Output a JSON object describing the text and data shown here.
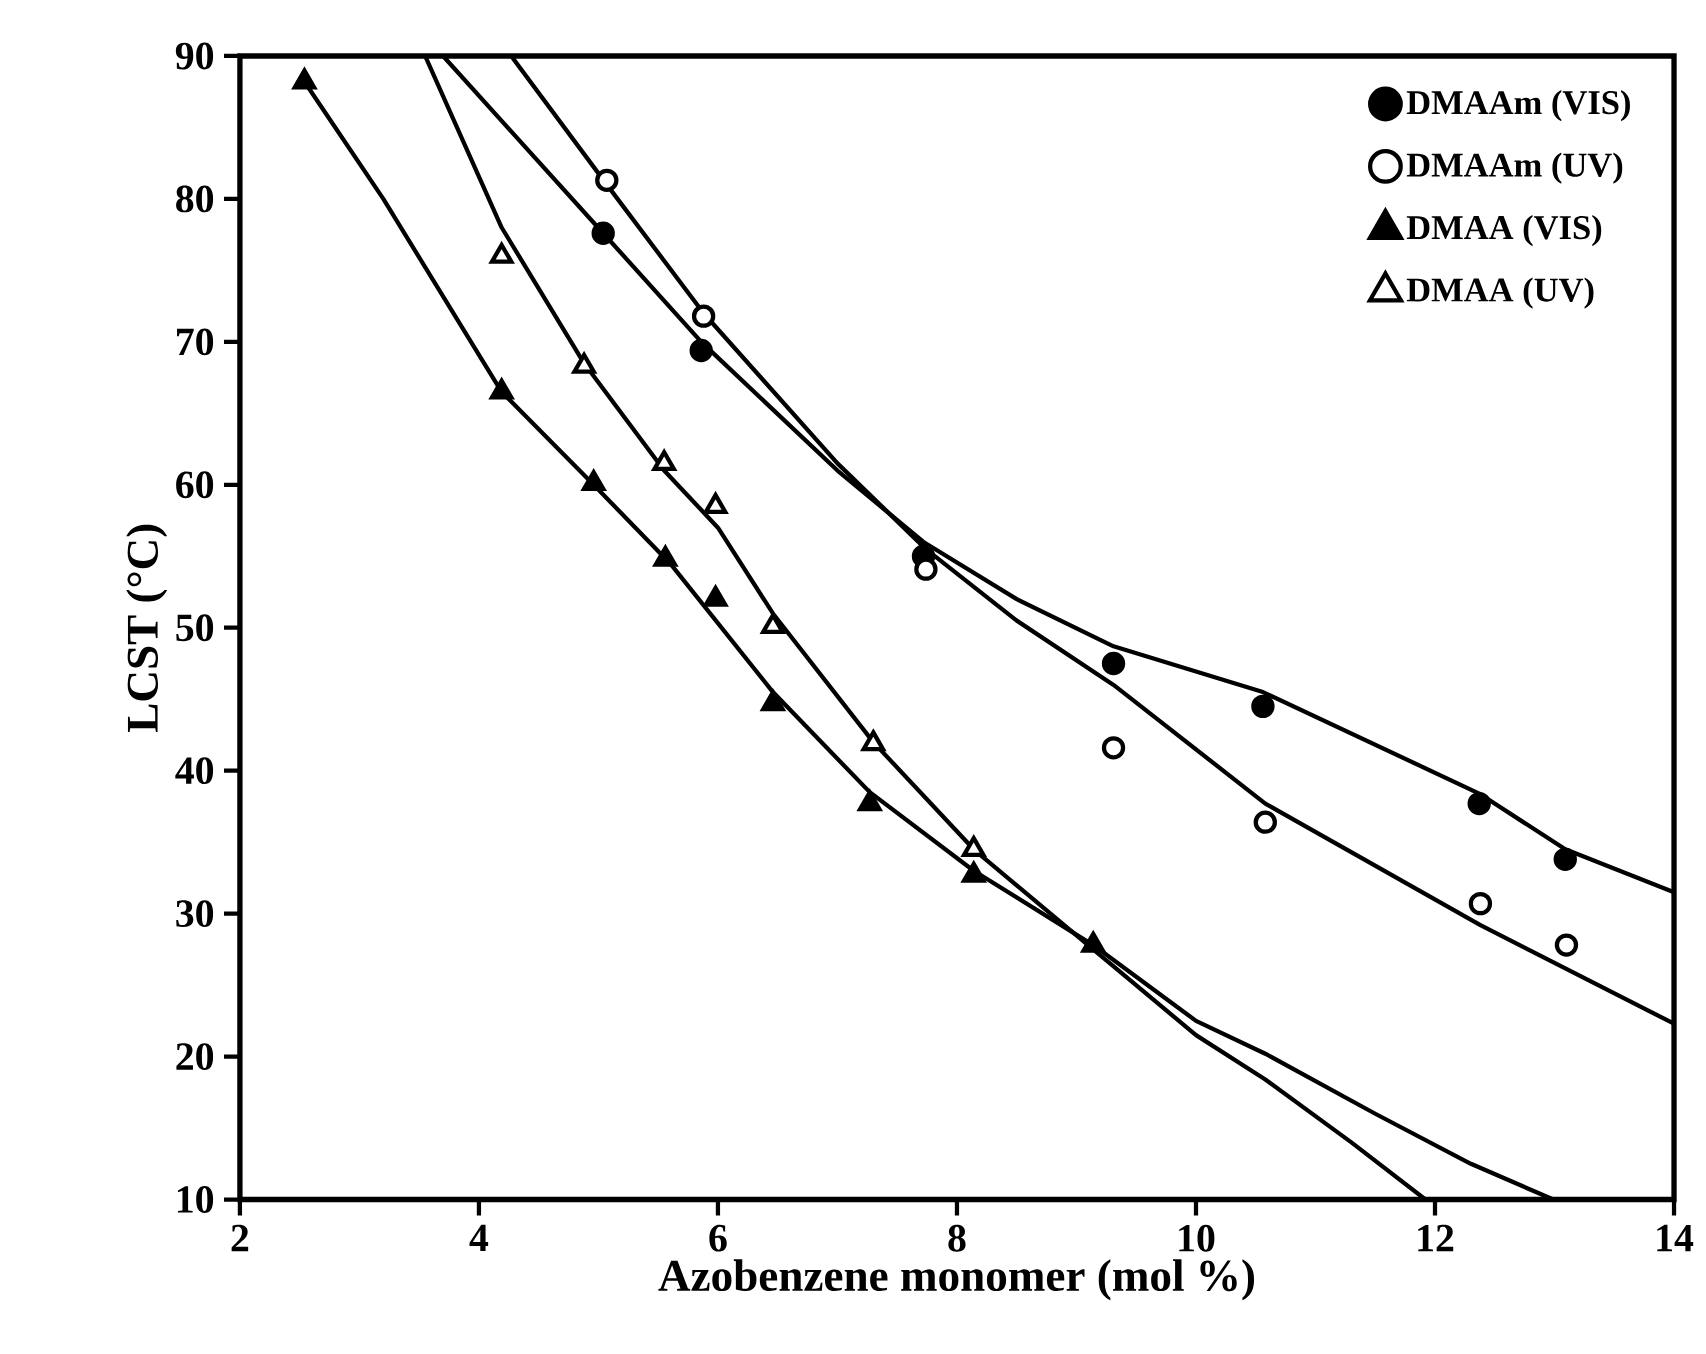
{
  "chart_data": {
    "type": "scatter",
    "xlabel": "Azobenzene monomer (mol %)",
    "ylabel": "LCST (°C)",
    "xlim": [
      2,
      14
    ],
    "ylim": [
      10,
      90
    ],
    "xticks": [
      2,
      4,
      6,
      8,
      10,
      12,
      14
    ],
    "yticks": [
      10,
      20,
      30,
      40,
      50,
      60,
      70,
      80,
      90
    ],
    "legend": "top right",
    "series": [
      {
        "name": "DMAAm (VIS)",
        "color": "#000000",
        "marker": "circle",
        "x": [
          5.04,
          5.86,
          7.72,
          9.31,
          10.56,
          12.37,
          13.09
        ],
        "values": [
          77.6,
          69.4,
          55.0,
          47.5,
          44.5,
          37.7,
          33.8
        ]
      },
      {
        "name": "DMAAm (UV)",
        "color": "#ffffff",
        "marker": "circle",
        "x": [
          5.07,
          5.88,
          7.74,
          9.31,
          10.58,
          12.38,
          13.1
        ],
        "values": [
          81.3,
          71.8,
          54.1,
          41.6,
          36.4,
          30.7,
          27.8
        ]
      },
      {
        "name": "DMAA (VIS)",
        "color": "#000000",
        "marker": "triangle",
        "x": [
          2.54,
          4.19,
          4.96,
          5.56,
          5.98,
          6.46,
          7.27,
          8.14,
          9.14
        ],
        "values": [
          88.2,
          66.5,
          60.1,
          54.8,
          52.0,
          44.7,
          37.7,
          32.7,
          27.8
        ]
      },
      {
        "name": "DMAA (UV)",
        "color": "#ffffff",
        "marker": "triangle",
        "x": [
          4.19,
          4.88,
          5.55,
          5.98,
          6.46,
          7.3,
          8.14
        ],
        "values": [
          76.0,
          68.3,
          61.5,
          58.5,
          50.1,
          41.9,
          34.5
        ]
      },
      {
        "type": "line",
        "color": "#000000",
        "marker": "none",
        "x": [
          3.7,
          5.04,
          5.86,
          7.0,
          7.72,
          8.5,
          9.31,
          10.56,
          12.37,
          13.09,
          14.0
        ],
        "values": [
          90,
          77.6,
          70,
          61,
          56,
          52,
          48.7,
          45.5,
          38.4,
          34.5,
          31.5
        ]
      },
      {
        "type": "line",
        "color": "#000000",
        "marker": "none",
        "x": [
          4.27,
          5.07,
          5.88,
          7.0,
          7.74,
          8.5,
          9.31,
          10.58,
          12.38,
          14.0
        ],
        "values": [
          90,
          81,
          72,
          61.5,
          55.5,
          50.5,
          46,
          37.7,
          29.2,
          22.3
        ]
      },
      {
        "type": "line",
        "color": "#000000",
        "marker": "none",
        "x": [
          2.54,
          3.2,
          4.19,
          4.96,
          5.6,
          6.46,
          7.27,
          8.14,
          9.14,
          10.0,
          10.58,
          11.5,
          12.3,
          12.99
        ],
        "values": [
          88.2,
          80,
          66.5,
          60,
          54.5,
          45.5,
          38.5,
          33,
          27.8,
          22.5,
          20.2,
          16,
          12.5,
          10
        ]
      },
      {
        "type": "line",
        "color": "#000000",
        "marker": "none",
        "x": [
          3.55,
          4.19,
          4.88,
          5.55,
          6.0,
          6.46,
          7.3,
          8.14,
          9.14,
          10.0,
          10.58,
          11.3,
          11.92
        ],
        "values": [
          90,
          78,
          68.5,
          61,
          57,
          51,
          42,
          34.5,
          27.5,
          21.5,
          18.4,
          14,
          10
        ]
      }
    ]
  }
}
